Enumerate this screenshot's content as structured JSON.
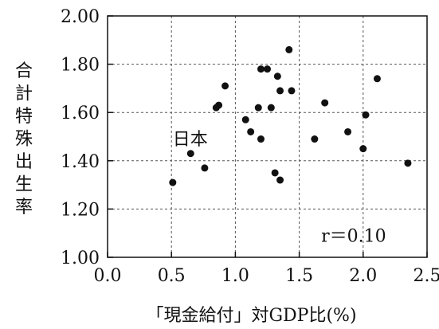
{
  "chart_data": {
    "type": "scatter",
    "title": "",
    "xlabel": "「現金給付」対GDP比(%)",
    "ylabel": "合計特殊出生率",
    "xlim": [
      0.0,
      2.5
    ],
    "ylim": [
      1.0,
      2.0
    ],
    "x_ticks": [
      "0.0",
      "0.5",
      "1.0",
      "1.5",
      "2.0",
      "2.5"
    ],
    "y_ticks": [
      "1.00",
      "1.20",
      "1.40",
      "1.60",
      "1.80",
      "2.00"
    ],
    "grid": true,
    "legend": "none",
    "point_color": "#111111",
    "grid_color": "#555555",
    "points": [
      {
        "x": 0.51,
        "y": 1.31
      },
      {
        "x": 0.65,
        "y": 1.43
      },
      {
        "x": 0.76,
        "y": 1.37
      },
      {
        "x": 0.85,
        "y": 1.62
      },
      {
        "x": 0.87,
        "y": 1.63
      },
      {
        "x": 0.92,
        "y": 1.71
      },
      {
        "x": 1.08,
        "y": 1.57
      },
      {
        "x": 1.12,
        "y": 1.52
      },
      {
        "x": 1.18,
        "y": 1.62
      },
      {
        "x": 1.2,
        "y": 1.49
      },
      {
        "x": 1.2,
        "y": 1.78
      },
      {
        "x": 1.25,
        "y": 1.78
      },
      {
        "x": 1.28,
        "y": 1.62
      },
      {
        "x": 1.31,
        "y": 1.35
      },
      {
        "x": 1.33,
        "y": 1.75
      },
      {
        "x": 1.35,
        "y": 1.32
      },
      {
        "x": 1.35,
        "y": 1.69
      },
      {
        "x": 1.42,
        "y": 1.86
      },
      {
        "x": 1.44,
        "y": 1.69
      },
      {
        "x": 1.62,
        "y": 1.49
      },
      {
        "x": 1.7,
        "y": 1.64
      },
      {
        "x": 1.88,
        "y": 1.52
      },
      {
        "x": 2.0,
        "y": 1.45
      },
      {
        "x": 2.02,
        "y": 1.59
      },
      {
        "x": 2.11,
        "y": 1.74
      },
      {
        "x": 2.35,
        "y": 1.39
      }
    ],
    "annotations": [
      {
        "text": "日本"
      },
      {
        "text": "r＝0.10"
      }
    ]
  }
}
